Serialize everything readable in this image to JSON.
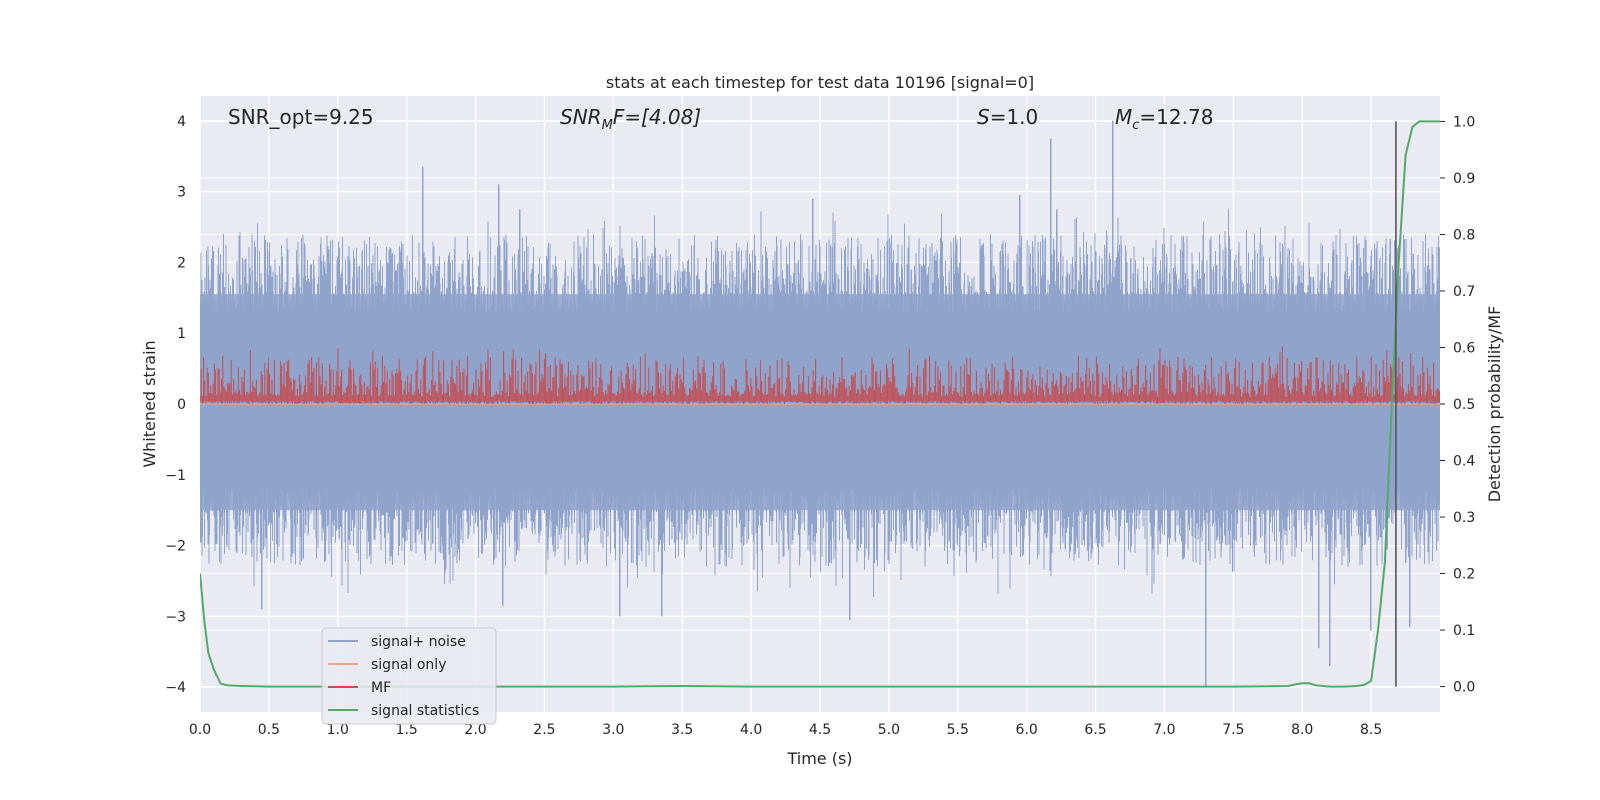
{
  "chart_data": {
    "type": "line",
    "title": "stats at each timestep for test data 10196 [signal=0]",
    "xlabel": "Time (s)",
    "ylabel": "Whitened strain",
    "ylabel_right": "Detection probability/MF",
    "xlim": [
      0.0,
      9.0
    ],
    "ylim": [
      -4.35,
      4.35
    ],
    "ylim_right": [
      -0.045,
      1.045
    ],
    "xticks": [
      "0.0",
      "0.5",
      "1.0",
      "1.5",
      "2.0",
      "2.5",
      "3.0",
      "3.5",
      "4.0",
      "4.5",
      "5.0",
      "5.5",
      "6.0",
      "6.5",
      "7.0",
      "7.5",
      "8.0",
      "8.5"
    ],
    "xtick_values": [
      0.0,
      0.5,
      1.0,
      1.5,
      2.0,
      2.5,
      3.0,
      3.5,
      4.0,
      4.5,
      5.0,
      5.5,
      6.0,
      6.5,
      7.0,
      7.5,
      8.0,
      8.5
    ],
    "yticks": [
      "−4",
      "−3",
      "−2",
      "−1",
      "0",
      "1",
      "2",
      "3",
      "4"
    ],
    "ytick_values": [
      -4,
      -3,
      -2,
      -1,
      0,
      1,
      2,
      3,
      4
    ],
    "yticks_right": [
      "0.0",
      "0.1",
      "0.2",
      "0.3",
      "0.4",
      "0.5",
      "0.6",
      "0.7",
      "0.8",
      "0.9",
      "1.0"
    ],
    "ytick_right_values": [
      0.0,
      0.1,
      0.2,
      0.3,
      0.4,
      0.5,
      0.6,
      0.7,
      0.8,
      0.9,
      1.0
    ],
    "grid": true,
    "annotations": {
      "snr_opt": "SNR_opt=9.25",
      "snr_mf_var": "SNR",
      "snr_mf_sub": "M",
      "snr_mf_rest": "F=[4.08]",
      "s_var": "S",
      "s_rest": "=1.0",
      "mc_var": "M",
      "mc_sub": "c",
      "mc_rest": "=12.78"
    },
    "legend": {
      "position": "lower-left",
      "entries": [
        {
          "label": "signal+ noise",
          "color": "#8fa3cb"
        },
        {
          "label": "signal only",
          "color": "#e8a488"
        },
        {
          "label": "MF",
          "color": "#c44e52"
        },
        {
          "label": "signal statistics",
          "color": "#55a868"
        }
      ]
    },
    "series": [
      {
        "name": "signal+ noise",
        "color": "#8fa3cb",
        "description": "whitened strain noise trace",
        "typical_range": [
          -2.2,
          2.2
        ],
        "spikes": [
          {
            "x": 1.62,
            "y": 3.35
          },
          {
            "x": 2.17,
            "y": 3.1
          },
          {
            "x": 2.32,
            "y": 2.75
          },
          {
            "x": 4.45,
            "y": 2.9
          },
          {
            "x": 5.95,
            "y": 2.95
          },
          {
            "x": 6.18,
            "y": 3.75
          },
          {
            "x": 6.63,
            "y": 4.0
          },
          {
            "x": 6.22,
            "y": 2.75
          },
          {
            "x": 4.72,
            "y": -3.05
          },
          {
            "x": 3.05,
            "y": -3.0
          },
          {
            "x": 3.35,
            "y": -3.0
          },
          {
            "x": 2.2,
            "y": -2.85
          },
          {
            "x": 0.45,
            "y": -2.9
          },
          {
            "x": 7.3,
            "y": -4.0
          },
          {
            "x": 8.2,
            "y": -3.7
          },
          {
            "x": 8.12,
            "y": -3.45
          },
          {
            "x": 8.5,
            "y": -3.2
          },
          {
            "x": 8.78,
            "y": -3.15
          }
        ]
      },
      {
        "name": "signal only",
        "color": "#e8a488",
        "x": [
          0,
          9
        ],
        "y": [
          0,
          0
        ]
      },
      {
        "name": "MF",
        "color": "#c44e52",
        "axis": "right",
        "typical_range": [
          0.5,
          0.6
        ]
      },
      {
        "name": "signal statistics",
        "color": "#55a868",
        "axis": "right",
        "x": [
          0.0,
          0.03,
          0.06,
          0.1,
          0.15,
          0.2,
          0.3,
          0.5,
          1.0,
          2.0,
          3.0,
          3.5,
          4.0,
          5.0,
          6.0,
          7.0,
          7.5,
          7.9,
          7.95,
          8.0,
          8.05,
          8.1,
          8.2,
          8.3,
          8.4,
          8.45,
          8.5,
          8.55,
          8.6,
          8.65,
          8.7,
          8.75,
          8.8,
          8.85,
          8.9,
          9.0
        ],
        "y": [
          0.2,
          0.12,
          0.06,
          0.03,
          0.005,
          0.002,
          0.001,
          0.0,
          0.0,
          0.0,
          0.0,
          0.001,
          0.0,
          0.0,
          0.0,
          0.0,
          0.0,
          0.001,
          0.004,
          0.006,
          0.006,
          0.002,
          0.0,
          0.0,
          0.001,
          0.003,
          0.01,
          0.1,
          0.22,
          0.5,
          0.75,
          0.94,
          0.99,
          1.0,
          1.0,
          1.0
        ]
      }
    ],
    "vertical_line": {
      "x": 8.68,
      "y_from": 0.0,
      "y_to": 1.0,
      "axis": "right",
      "color": "#555555"
    }
  }
}
